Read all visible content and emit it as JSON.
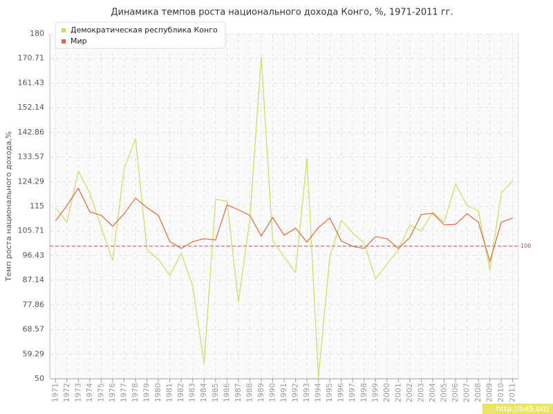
{
  "chart_data": {
    "type": "line",
    "title": "Динамика темпов роста национального дохода Конго, %, 1971-2011 гг.",
    "y_label": "Темп роста национального дохода,%",
    "watermark": "http://be5.biz/",
    "categories": [
      "1971",
      "1972",
      "1973",
      "1974",
      "1975",
      "1976",
      "1977",
      "1978",
      "1979",
      "1980",
      "1981",
      "1982",
      "1983",
      "1984",
      "1985",
      "1986",
      "1987",
      "1988",
      "1989",
      "1990",
      "1991",
      "1992",
      "1993",
      "1994",
      "1995",
      "1996",
      "1997",
      "1998",
      "1999",
      "2000",
      "2001",
      "2002",
      "2003",
      "2004",
      "2005",
      "2006",
      "2007",
      "2008",
      "2009",
      "2010",
      "2011"
    ],
    "series": [
      {
        "name": "Демократическая республика Конго",
        "color": "#c5e05a",
        "values": [
          114.5,
          109,
          128.3,
          120,
          107,
          94.5,
          129,
          140.5,
          98.6,
          95,
          89,
          97.3,
          85,
          55.7,
          117.6,
          117,
          79,
          110,
          171.4,
          102,
          96,
          90,
          133.2,
          50.5,
          96,
          109.8,
          105,
          101.2,
          87.7,
          93.2,
          98.6,
          108,
          105.6,
          112.7,
          109,
          123.4,
          115.3,
          113.2,
          90.8,
          120,
          124.6
        ]
      },
      {
        "name": "Мир",
        "color": "#e0683a",
        "values": [
          109.5,
          115.3,
          121.8,
          112.9,
          111.6,
          107.5,
          112.2,
          118.1,
          114.5,
          111.6,
          101.7,
          99.1,
          101.7,
          102.8,
          102.3,
          115.5,
          113.7,
          111.6,
          103.8,
          110.8,
          104.1,
          106.7,
          101.5,
          107,
          110.6,
          102,
          99.9,
          99.1,
          103.6,
          102.8,
          99.1,
          103.3,
          111.9,
          112.4,
          108,
          108.2,
          112.2,
          109,
          94.2,
          109,
          110.6
        ]
      }
    ],
    "reference_line": 100,
    "reference_color": "#b0475a",
    "ylim": [
      50,
      180
    ],
    "yticks": [
      50,
      59.29,
      68.57,
      77.86,
      87.14,
      96.43,
      105.71,
      115,
      124.29,
      133.57,
      142.86,
      152.14,
      161.43,
      170.71,
      180
    ],
    "grid": true,
    "legend": "top-left"
  }
}
